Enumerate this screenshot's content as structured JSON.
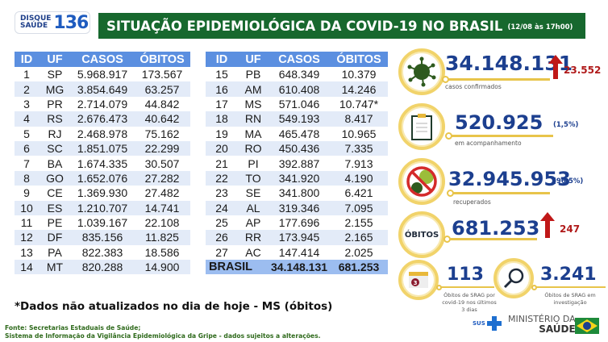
{
  "header": {
    "logo_line1": "DISQUE",
    "logo_line2": "SAÚDE",
    "logo_number": "136",
    "title": "SITUAÇÃO EPIDEMIOLÓGICA DA COVID-19 NO BRASIL",
    "date": "(12/08 às 17h00)"
  },
  "colors": {
    "title_bar": "#17682e",
    "table_header": "#5b8fe0",
    "total_row": "#9cbdf0",
    "accent_gold": "#f1d36a",
    "number_blue": "#1c3f8f",
    "increase_red": "#b01a1a"
  },
  "table": {
    "headers": [
      "ID",
      "UF",
      "CASOS",
      "ÓBITOS"
    ],
    "left_rows": [
      {
        "id": "1",
        "uf": "SP",
        "casos": "5.968.917",
        "obitos": "173.567"
      },
      {
        "id": "2",
        "uf": "MG",
        "casos": "3.854.649",
        "obitos": "63.257"
      },
      {
        "id": "3",
        "uf": "PR",
        "casos": "2.714.079",
        "obitos": "44.842"
      },
      {
        "id": "4",
        "uf": "RS",
        "casos": "2.676.473",
        "obitos": "40.642"
      },
      {
        "id": "5",
        "uf": "RJ",
        "casos": "2.468.978",
        "obitos": "75.162"
      },
      {
        "id": "6",
        "uf": "SC",
        "casos": "1.851.075",
        "obitos": "22.299"
      },
      {
        "id": "7",
        "uf": "BA",
        "casos": "1.674.335",
        "obitos": "30.507"
      },
      {
        "id": "8",
        "uf": "GO",
        "casos": "1.652.076",
        "obitos": "27.282"
      },
      {
        "id": "9",
        "uf": "CE",
        "casos": "1.369.930",
        "obitos": "27.482"
      },
      {
        "id": "10",
        "uf": "ES",
        "casos": "1.210.707",
        "obitos": "14.741"
      },
      {
        "id": "11",
        "uf": "PE",
        "casos": "1.039.167",
        "obitos": "22.108"
      },
      {
        "id": "12",
        "uf": "DF",
        "casos": "835.156",
        "obitos": "11.825"
      },
      {
        "id": "13",
        "uf": "PA",
        "casos": "822.383",
        "obitos": "18.586"
      },
      {
        "id": "14",
        "uf": "MT",
        "casos": "820.288",
        "obitos": "14.900"
      }
    ],
    "right_rows": [
      {
        "id": "15",
        "uf": "PB",
        "casos": "648.349",
        "obitos": "10.379"
      },
      {
        "id": "16",
        "uf": "AM",
        "casos": "610.408",
        "obitos": "14.246"
      },
      {
        "id": "17",
        "uf": "MS",
        "casos": "571.046",
        "obitos": "10.747*"
      },
      {
        "id": "18",
        "uf": "RN",
        "casos": "549.193",
        "obitos": "8.417"
      },
      {
        "id": "19",
        "uf": "MA",
        "casos": "465.478",
        "obitos": "10.965"
      },
      {
        "id": "20",
        "uf": "RO",
        "casos": "450.436",
        "obitos": "7.335"
      },
      {
        "id": "21",
        "uf": "PI",
        "casos": "392.887",
        "obitos": "7.913"
      },
      {
        "id": "22",
        "uf": "TO",
        "casos": "341.920",
        "obitos": "4.190"
      },
      {
        "id": "23",
        "uf": "SE",
        "casos": "341.800",
        "obitos": "6.421"
      },
      {
        "id": "24",
        "uf": "AL",
        "casos": "319.346",
        "obitos": "7.095"
      },
      {
        "id": "25",
        "uf": "AP",
        "casos": "177.696",
        "obitos": "2.155"
      },
      {
        "id": "26",
        "uf": "RR",
        "casos": "173.945",
        "obitos": "2.165"
      },
      {
        "id": "27",
        "uf": "AC",
        "casos": "147.414",
        "obitos": "2.025"
      }
    ],
    "total": {
      "label": "BRASIL",
      "casos": "34.148.131",
      "obitos": "681.253"
    }
  },
  "stats": {
    "confirmed": {
      "value": "34.148.131",
      "label": "casos confirmados",
      "delta": "23.552",
      "icon": "virus-icon"
    },
    "monitoring": {
      "value": "520.925",
      "label": "em acompanhamento",
      "pct": "(1,5%)",
      "icon": "clipboard-icon"
    },
    "recovered": {
      "value": "32.945.953",
      "label": "recuperados",
      "pct": "(96,5%)",
      "icon": "no-virus-icon"
    },
    "deaths": {
      "badge": "ÓBITOS",
      "value": "681.253",
      "delta": "247"
    },
    "srag_recent": {
      "value": "113",
      "label_line1": "Óbitos de SRAG por",
      "label_line2": "covid-19 nos últimos",
      "label_line3": "3 dias",
      "calendar_day": "3",
      "icon": "calendar-icon"
    },
    "srag_investigation": {
      "value": "3.241",
      "label_line1": "Óbitos de SRAG em",
      "label_line2": "investigação",
      "icon": "magnifier-icon"
    }
  },
  "footnote": "*Dados não atualizados no dia de hoje - MS (óbitos)",
  "source": {
    "line1": "Fonte: Secretarias Estaduais de Saúde;",
    "line2": "Sistema de Informação da Vigilância Epidemiológica da Gripe - dados sujeitos a alterações."
  },
  "footer_logo": {
    "sus": "SUS",
    "ministerio": "MINISTÉRIO DA",
    "saude": "SAÚDE"
  }
}
